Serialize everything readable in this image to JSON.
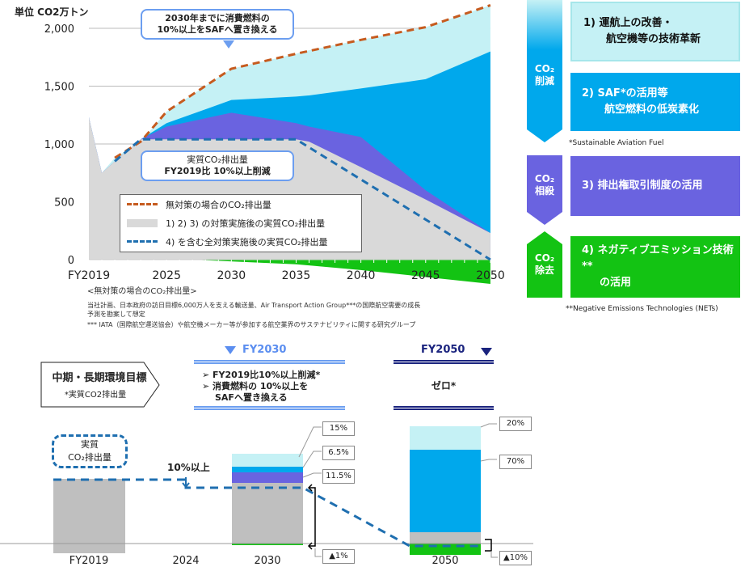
{
  "colors": {
    "bau": "#c65b1f",
    "gray": "#d9d9d9",
    "purple": "#6a63e0",
    "blue": "#00a8ec",
    "cyan": "#c5f1f5",
    "green": "#13c313",
    "dash": "#1f6fb0"
  },
  "chart_data": {
    "type": "area",
    "unit_label": "単位 CO2万トン",
    "x": [
      2019,
      2020,
      2021,
      2023,
      2025,
      2030,
      2035,
      2036,
      2040,
      2045,
      2050
    ],
    "x_ticks": [
      "FY2019",
      "2025",
      "2030",
      "2035",
      "2040",
      "2045",
      "2050"
    ],
    "x_tick_values": [
      2019,
      2025,
      2030,
      2035,
      2040,
      2045,
      2050
    ],
    "y_ticks": [
      "0",
      "500",
      "1,000",
      "1,500",
      "2,000"
    ],
    "y_tick_values": [
      0,
      500,
      1000,
      1500,
      2000
    ],
    "ylim": [
      -250,
      2250
    ],
    "series": [
      {
        "name": "1) 2) 3) の対策実施後の実質CO2排出量",
        "role": "gray",
        "values": [
          1230,
          750,
          850,
          1040,
          1040,
          1040,
          1040,
          1020,
          800,
          520,
          230
        ]
      },
      {
        "name": "3) 排出権取引",
        "role": "purple",
        "values": [
          1230,
          750,
          850,
          1040,
          1150,
          1270,
          1180,
          1150,
          1060,
          600,
          230
        ]
      },
      {
        "name": "2) SAF",
        "role": "blue",
        "values": [
          1230,
          750,
          850,
          1040,
          1180,
          1380,
          1410,
          1420,
          1480,
          1560,
          1800
        ]
      },
      {
        "name": "1) 運航改善・技術革新",
        "role": "cyan",
        "values": [
          1230,
          750,
          880,
          1020,
          1280,
          1650,
          1780,
          1810,
          1900,
          2010,
          2200
        ]
      },
      {
        "name": "無対策の場合のCO2排出量",
        "role": "bau_line",
        "x": [
          2021,
          2023,
          2025,
          2030,
          2035,
          2040,
          2045,
          2050
        ],
        "values": [
          880,
          1020,
          1280,
          1650,
          1780,
          1900,
          2010,
          2200
        ]
      },
      {
        "name": "4) を含む全対策実施後の実質CO2排出量",
        "role": "dash_line",
        "x": [
          2021,
          2023,
          2035,
          2050
        ],
        "values": [
          850,
          1040,
          1040,
          0
        ]
      },
      {
        "name": "4) ネガティブエミッション",
        "role": "green",
        "x": [
          2027,
          2035,
          2040,
          2045,
          2050
        ],
        "values": [
          0,
          -40,
          -90,
          -150,
          -210
        ]
      }
    ]
  },
  "callouts": {
    "saf_line1": "2030年までに消費燃料の",
    "saf_line2": "10%以上をSAFへ置き換える",
    "net_line1": "実質CO₂排出量",
    "net_line2": "FY2019比 10%以上削減"
  },
  "legend": [
    "無対策の場合のCO₂排出量",
    "1) 2) 3) の対策実施後の実質CO₂排出量",
    "4) を含む全対策実施後の実質CO₂排出量"
  ],
  "notes": {
    "title": "<無対策の場合のCO₂排出量>",
    "line1": "当社計画、日本政府の訪日目標6,000万人を支える輸送量、Air Transport Action Group***の国際航空需要の成長",
    "line2": "予測を勘案して想定",
    "line3": "*** IATA（国際航空運送協会）や航空機メーカー等が参加する航空業界のサステナビリティに関する研究グループ"
  },
  "categories": [
    {
      "label1": "CO₂",
      "label2": "削減"
    },
    {
      "label1": "CO₂",
      "label2": "相殺"
    },
    {
      "label1": "CO₂",
      "label2": "除去"
    }
  ],
  "measures": [
    {
      "line1": "1)  運航上の改善・",
      "line2": "航空機等の技術革新"
    },
    {
      "line1": "2) SAF*の活用等",
      "line2": "航空燃料の低炭素化"
    },
    {
      "line1": "3) 排出権取引制度の活用",
      "line2": ""
    },
    {
      "line1": "4) ネガティブエミッション技術**",
      "line2": "の活用"
    }
  ],
  "footnotes": {
    "saf": "*Sustainable Aviation Fuel",
    "nets": "**Negative Emissions Technologies (NETs)"
  },
  "targets": {
    "label": "中期・長期環境目標",
    "sub": "*実質CO2排出量",
    "fy2030": "FY2030",
    "fy2030_items": [
      "FY2019比10%以上削減*",
      "消費燃料の 10%以上を",
      "SAFへ置き換える"
    ],
    "fy2050": "FY2050",
    "fy2050_text": "ゼロ*"
  },
  "bars": {
    "net_label1": "実質",
    "net_label2": "CO₂排出量",
    "reduction": "10%以上",
    "x_labels": [
      "FY2019",
      "2024",
      "2030",
      "2050"
    ],
    "fy2030": {
      "cyan_pct": "15%",
      "blue_pct": "6.5%",
      "purple_pct": "11.5%",
      "green_pct": "▲1%"
    },
    "fy2050": {
      "cyan_pct": "20%",
      "blue_pct": "70%",
      "green_pct": "▲10%"
    }
  }
}
